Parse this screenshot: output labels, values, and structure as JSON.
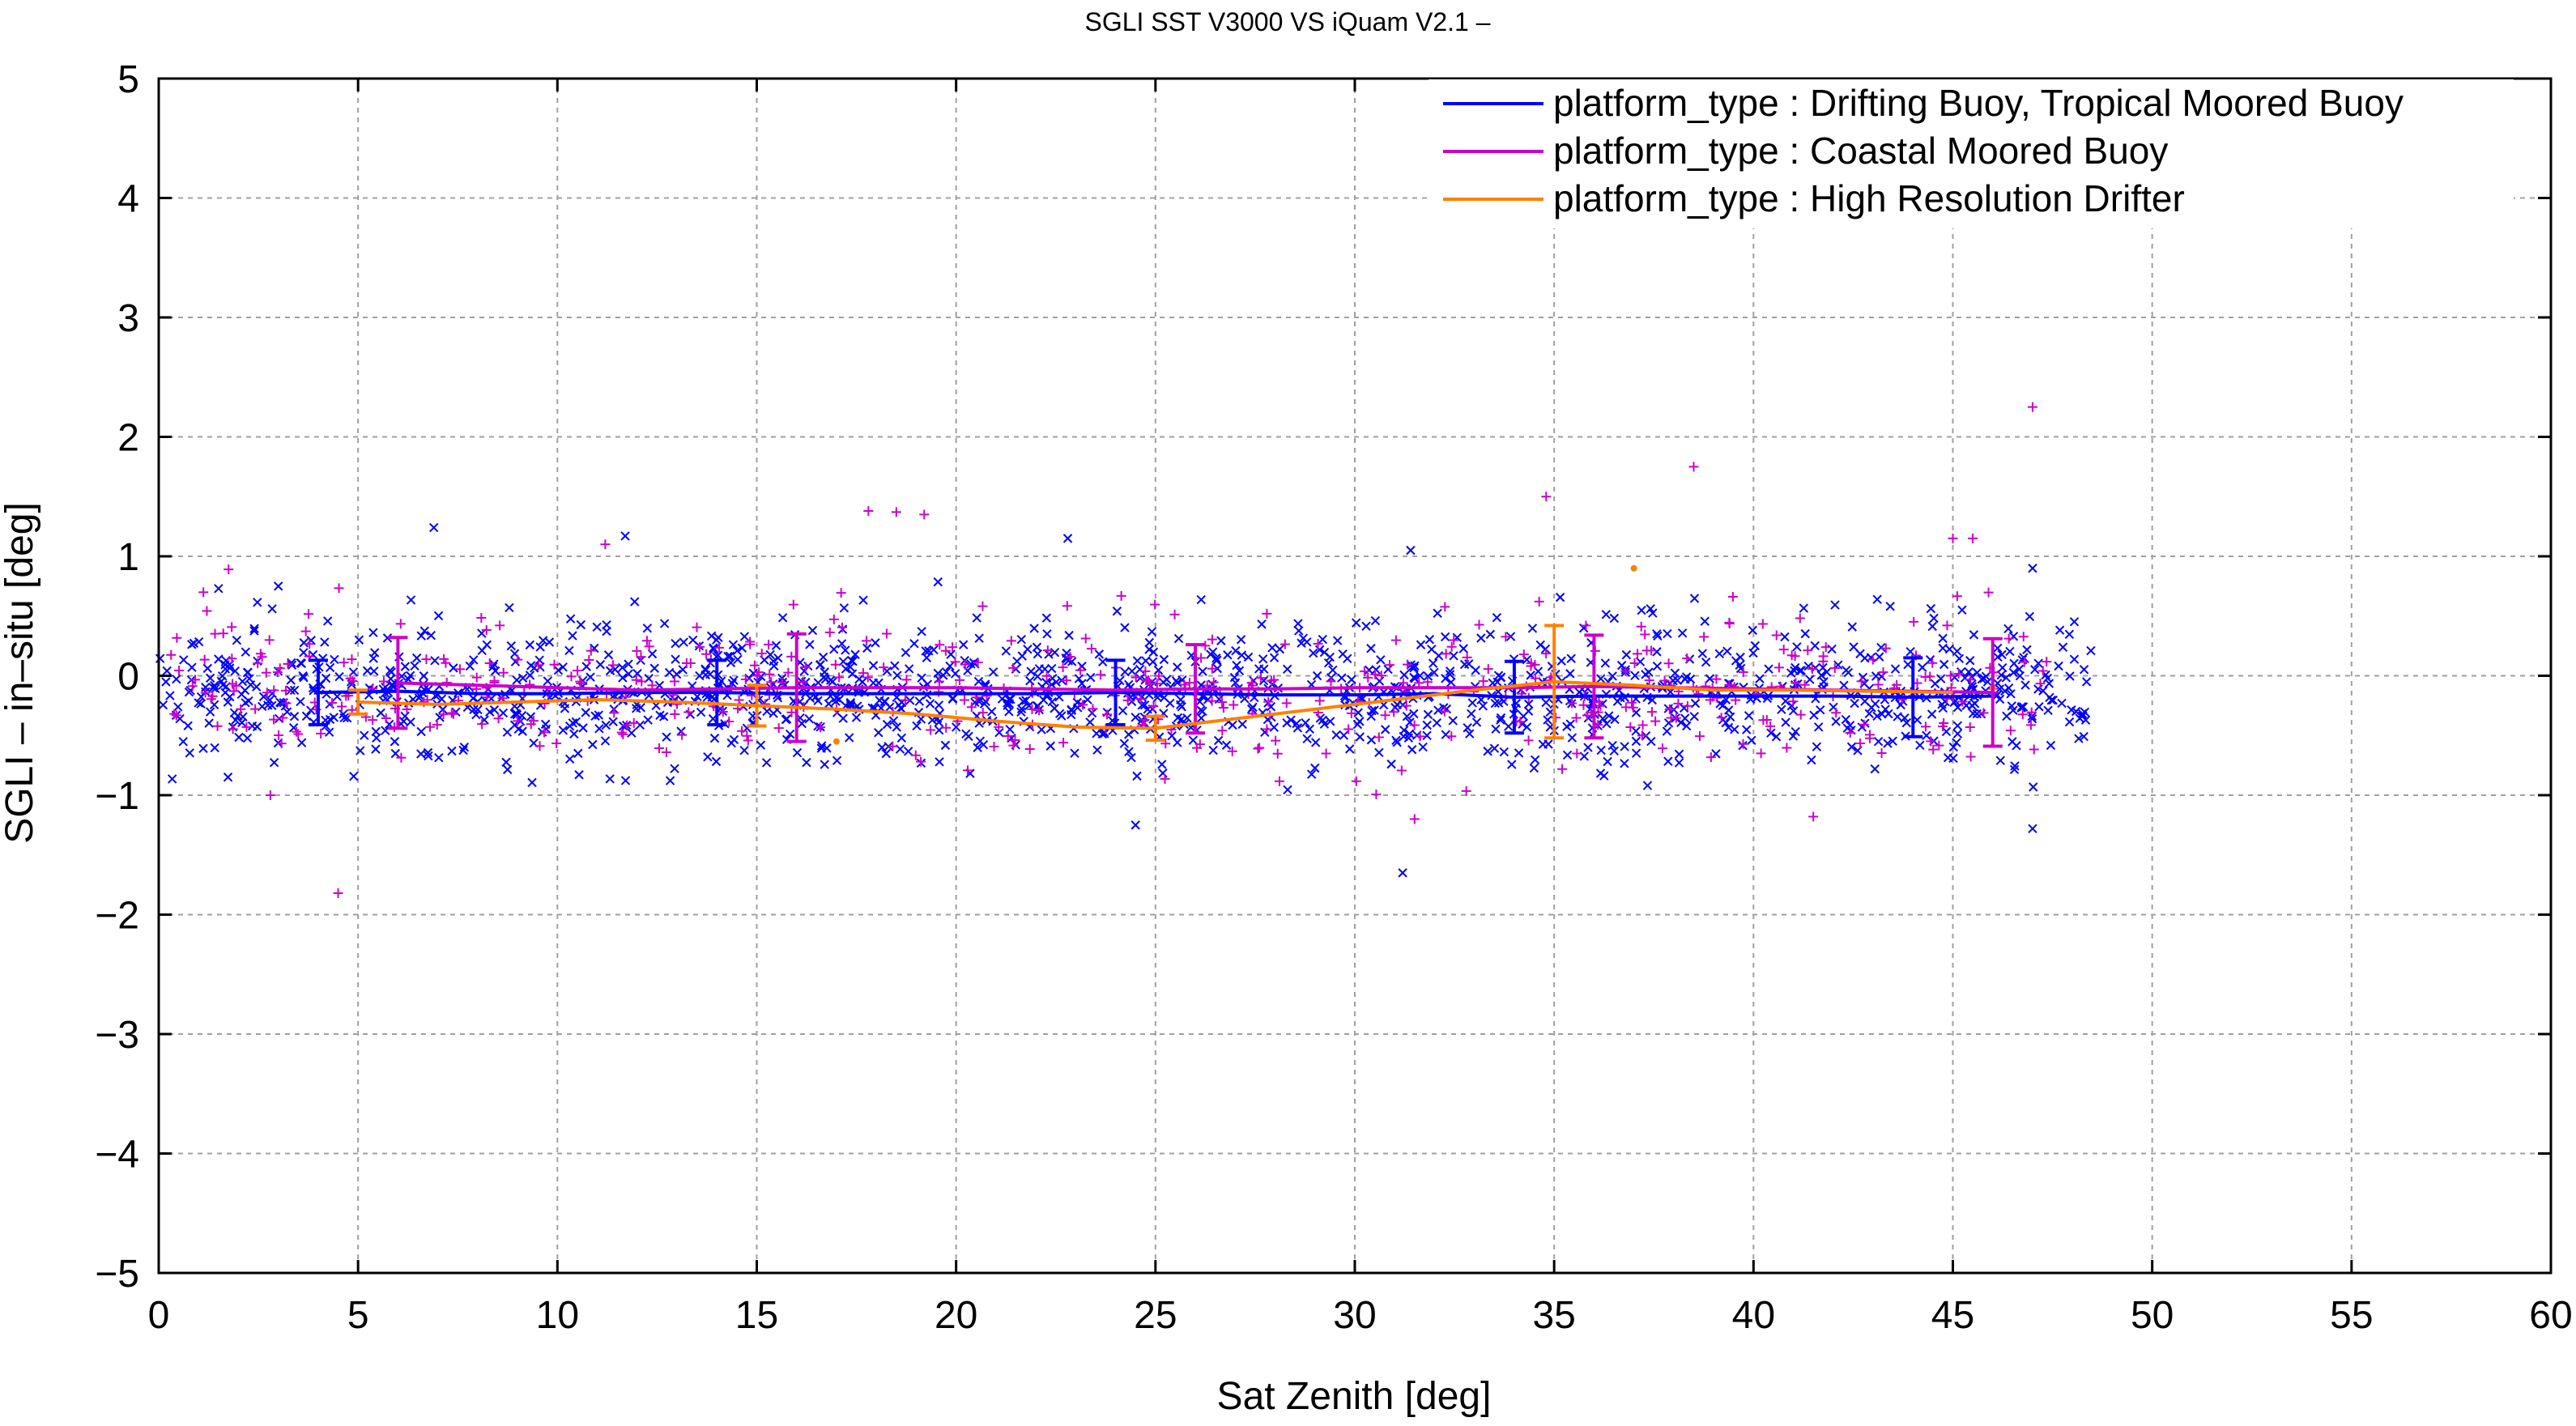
{
  "chart_data": {
    "type": "scatter",
    "title": "SGLI SST V3000 VS iQuam V2.1  –",
    "xlabel": "Sat Zenith [deg]",
    "ylabel": "SGLI – in–situ [deg]",
    "xlim": [
      0,
      60
    ],
    "ylim": [
      -5,
      5
    ],
    "xticks": [
      0,
      5,
      10,
      15,
      20,
      25,
      30,
      35,
      40,
      45,
      50,
      55,
      60
    ],
    "xtick_labels": [
      "0",
      "5",
      "10",
      "15",
      "20",
      "25",
      "30",
      "35",
      "40",
      "45",
      "50",
      "55",
      "60"
    ],
    "yticks": [
      -5,
      -4,
      -3,
      -2,
      -1,
      0,
      1,
      2,
      3,
      4,
      5
    ],
    "ytick_labels": [
      "−5",
      "−4",
      "−3",
      "−2",
      "−1",
      "0",
      "1",
      "2",
      "3",
      "4",
      "5"
    ],
    "grid": true,
    "legend_position": "top-right",
    "series": [
      {
        "name": "platform_type : Drifting Buoy, Tropical Moored Buoy",
        "color": "#0000ff",
        "marker": "x",
        "n_points": 1500,
        "x_range": [
          0,
          48.5
        ],
        "scatter_sd": 0.28,
        "mean_line": {
          "x": [
            4,
            6,
            8,
            10,
            12,
            14,
            16,
            18,
            20,
            22,
            24,
            26,
            28,
            30,
            32,
            34,
            36,
            38,
            40,
            42,
            44,
            46
          ],
          "y": [
            -0.14,
            -0.13,
            -0.15,
            -0.15,
            -0.14,
            -0.14,
            -0.15,
            -0.15,
            -0.15,
            -0.15,
            -0.14,
            -0.15,
            -0.16,
            -0.16,
            -0.15,
            -0.18,
            -0.17,
            -0.17,
            -0.17,
            -0.17,
            -0.18,
            -0.17
          ]
        },
        "error_bars": [
          {
            "x": 4,
            "y": -0.14,
            "sd": 0.27
          },
          {
            "x": 14,
            "y": -0.14,
            "sd": 0.27
          },
          {
            "x": 24,
            "y": -0.14,
            "sd": 0.27
          },
          {
            "x": 34,
            "y": -0.18,
            "sd": 0.3
          },
          {
            "x": 44,
            "y": -0.18,
            "sd": 0.33
          }
        ],
        "outliers": [
          [
            6.9,
            1.24
          ],
          [
            11.7,
            1.17
          ],
          [
            22.8,
            1.15
          ],
          [
            31.4,
            1.05
          ],
          [
            24.5,
            -1.25
          ],
          [
            31.2,
            -1.65
          ],
          [
            47,
            -1.28
          ],
          [
            47,
            0.9
          ],
          [
            3.0,
            0.75
          ],
          [
            1.5,
            0.73
          ]
        ]
      },
      {
        "name": "platform_type : Coastal Moored Buoy",
        "color": "#cc00cc",
        "marker": "+",
        "n_points": 520,
        "x_range": [
          0.3,
          47.5
        ],
        "scatter_sd": 0.32,
        "mean_line": {
          "x": [
            6,
            8,
            10,
            12,
            14,
            16,
            18,
            20,
            22,
            24,
            26,
            28,
            30,
            32,
            34,
            36,
            38,
            40,
            42,
            44,
            46
          ],
          "y": [
            -0.06,
            -0.08,
            -0.1,
            -0.12,
            -0.11,
            -0.1,
            -0.1,
            -0.1,
            -0.11,
            -0.12,
            -0.11,
            -0.11,
            -0.1,
            -0.1,
            -0.1,
            -0.09,
            -0.1,
            -0.11,
            -0.12,
            -0.13,
            -0.14
          ]
        },
        "error_bars": [
          {
            "x": 6,
            "y": -0.06,
            "sd": 0.38
          },
          {
            "x": 16,
            "y": -0.1,
            "sd": 0.45
          },
          {
            "x": 26,
            "y": -0.11,
            "sd": 0.37
          },
          {
            "x": 36,
            "y": -0.09,
            "sd": 0.43
          },
          {
            "x": 46,
            "y": -0.14,
            "sd": 0.45
          }
        ],
        "outliers": [
          [
            4.5,
            -1.82
          ],
          [
            11.2,
            1.1
          ],
          [
            17.8,
            1.38
          ],
          [
            18.5,
            1.37
          ],
          [
            19.2,
            1.35
          ],
          [
            34.8,
            1.5
          ],
          [
            38.5,
            1.75
          ],
          [
            47,
            2.25
          ],
          [
            31.5,
            -1.2
          ],
          [
            45,
            1.15
          ],
          [
            45.5,
            1.15
          ],
          [
            2.8,
            -1.0
          ],
          [
            41.5,
            -1.18
          ]
        ]
      },
      {
        "name": "platform_type : High Resolution Drifter",
        "color": "#ff8000",
        "marker": "dot",
        "n_points": 0,
        "x_range": [
          5,
          45
        ],
        "scatter_sd": 0.0,
        "mean_line": {
          "x": [
            5,
            7,
            9,
            11,
            13,
            15,
            17,
            19,
            21,
            23,
            25,
            27,
            29,
            31,
            33,
            35,
            37,
            39,
            41,
            43,
            45
          ],
          "y": [
            -0.22,
            -0.24,
            -0.22,
            -0.2,
            -0.22,
            -0.25,
            -0.28,
            -0.32,
            -0.38,
            -0.43,
            -0.44,
            -0.36,
            -0.28,
            -0.2,
            -0.12,
            -0.05,
            -0.08,
            -0.12,
            -0.12,
            -0.13,
            -0.14
          ]
        },
        "error_bars": [
          {
            "x": 5,
            "y": -0.22,
            "sd": 0.1
          },
          {
            "x": 15,
            "y": -0.25,
            "sd": 0.17
          },
          {
            "x": 25,
            "y": -0.44,
            "sd": 0.1
          },
          {
            "x": 35,
            "y": -0.05,
            "sd": 0.47
          }
        ],
        "outliers": [
          [
            17,
            -0.55
          ],
          [
            37,
            0.9
          ],
          [
            46,
            -0.1
          ]
        ]
      }
    ]
  }
}
